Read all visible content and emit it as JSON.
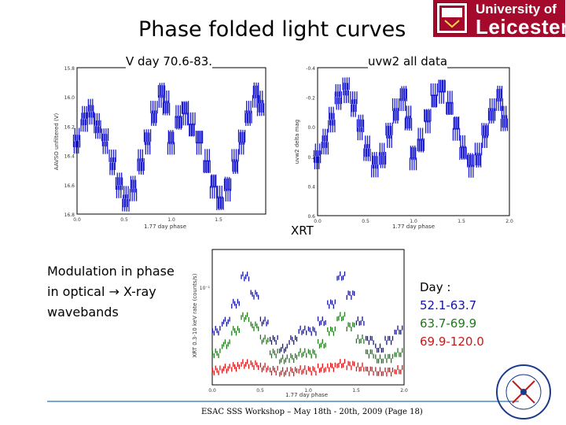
{
  "slide": {
    "title": "Phase folded light curves",
    "footer": "ESAC SSS Workshop – May 18th - 20th, 2009 (Page 18)",
    "text": [
      "Modulation in phase",
      "in optical → X-ray",
      "wavebands"
    ]
  },
  "logo": {
    "line1": "University of",
    "line2": "Leicester",
    "color": "#a50a2c"
  },
  "legend": {
    "header": "Day :",
    "items": [
      "52.1-63.7",
      "63.7-69.9",
      "69.9-120.0"
    ]
  },
  "chart_data": [
    {
      "type": "scatter",
      "title": "V day 70.6-83.",
      "xlabel": "1.77 day phase",
      "ylabel": "AAVSO unfiltered (V)",
      "xlim": [
        0.0,
        2.0
      ],
      "ylim": [
        16.8,
        15.8
      ],
      "x_ticks": [
        "0.0",
        "0.5",
        "1.0",
        "1.5"
      ],
      "y_ticks": [
        "15.8",
        "16.0",
        "16.2",
        "16.4",
        "16.6",
        "16.8"
      ],
      "series": [
        {
          "name": "V",
          "color": "#1a1ad4",
          "x": [
            0.0,
            0.08,
            0.15,
            0.22,
            0.3,
            0.38,
            0.45,
            0.52,
            0.6,
            0.68,
            0.75,
            0.82,
            0.9,
            0.95,
            1.0,
            1.08,
            1.15,
            1.22,
            1.3,
            1.38,
            1.45,
            1.52,
            1.6,
            1.68,
            1.75,
            1.82,
            1.9,
            1.95
          ],
          "y": [
            16.3,
            16.15,
            16.1,
            16.2,
            16.3,
            16.45,
            16.6,
            16.7,
            16.62,
            16.45,
            16.3,
            16.12,
            15.98,
            16.05,
            16.3,
            16.15,
            16.1,
            16.2,
            16.3,
            16.45,
            16.6,
            16.7,
            16.62,
            16.45,
            16.3,
            16.12,
            15.98,
            16.05
          ]
        }
      ]
    },
    {
      "type": "scatter",
      "title": "uvw2 all data",
      "xlabel": "1.77 day phase",
      "ylabel": "uvw2 delta mag",
      "xlim": [
        0.0,
        2.0
      ],
      "ylim": [
        0.6,
        -0.4
      ],
      "x_ticks": [
        "0.0",
        "0.5",
        "1.0",
        "1.5",
        "2.0"
      ],
      "y_ticks": [
        "-0.4",
        "-0.2",
        "0.0",
        "0.2",
        "0.4",
        "0.6"
      ],
      "series": [
        {
          "name": "uvw2",
          "color": "#1a1ad4",
          "x": [
            0.0,
            0.08,
            0.15,
            0.22,
            0.3,
            0.38,
            0.45,
            0.52,
            0.6,
            0.68,
            0.75,
            0.82,
            0.9,
            0.95,
            1.0,
            1.08,
            1.15,
            1.22,
            1.3,
            1.38,
            1.45,
            1.52,
            1.6,
            1.68,
            1.75,
            1.82,
            1.9,
            1.95
          ],
          "y": [
            0.2,
            0.1,
            -0.05,
            -0.2,
            -0.25,
            -0.15,
            0.0,
            0.15,
            0.25,
            0.2,
            0.05,
            -0.1,
            -0.2,
            -0.05,
            0.2,
            0.1,
            -0.05,
            -0.2,
            -0.25,
            -0.15,
            0.0,
            0.15,
            0.25,
            0.2,
            0.05,
            -0.1,
            -0.2,
            -0.05
          ]
        }
      ]
    },
    {
      "type": "scatter",
      "title": "XRT",
      "xlabel": "1.77 day phase",
      "ylabel": "XRT 0.3-10 keV rate (counts/s)",
      "xlim": [
        0.0,
        2.0
      ],
      "ylim": [
        0.05,
        0.2
      ],
      "x_ticks": [
        "0.0",
        "0.5",
        "1.0",
        "1.5",
        "2.0"
      ],
      "y_ticks": [
        "10⁻¹"
      ],
      "series": [
        {
          "name": "52.1-63.7",
          "color": "#1414a0",
          "x": [
            0.05,
            0.15,
            0.25,
            0.35,
            0.45,
            0.55,
            0.65,
            0.75,
            0.85,
            0.95,
            1.05,
            1.15,
            1.25,
            1.35,
            1.45,
            1.55,
            1.65,
            1.75,
            1.85,
            1.95
          ],
          "y": [
            0.11,
            0.12,
            0.14,
            0.17,
            0.15,
            0.12,
            0.1,
            0.09,
            0.1,
            0.11,
            0.11,
            0.12,
            0.14,
            0.17,
            0.15,
            0.12,
            0.1,
            0.09,
            0.1,
            0.11
          ]
        },
        {
          "name": "63.7-69.9",
          "color": "#1f7a1a",
          "x": [
            0.05,
            0.15,
            0.25,
            0.35,
            0.45,
            0.55,
            0.65,
            0.75,
            0.85,
            0.95,
            1.05,
            1.15,
            1.25,
            1.35,
            1.45,
            1.55,
            1.65,
            1.75,
            1.85,
            1.95
          ],
          "y": [
            0.085,
            0.095,
            0.11,
            0.125,
            0.115,
            0.1,
            0.085,
            0.078,
            0.08,
            0.085,
            0.085,
            0.095,
            0.11,
            0.125,
            0.115,
            0.1,
            0.085,
            0.078,
            0.08,
            0.085
          ]
        },
        {
          "name": "69.9-120.0",
          "color": "#e01010",
          "x": [
            0.05,
            0.15,
            0.25,
            0.35,
            0.45,
            0.55,
            0.65,
            0.75,
            0.85,
            0.95,
            1.05,
            1.15,
            1.25,
            1.35,
            1.45,
            1.55,
            1.65,
            1.75,
            1.85,
            1.95
          ],
          "y": [
            0.066,
            0.068,
            0.07,
            0.073,
            0.072,
            0.069,
            0.066,
            0.064,
            0.065,
            0.066,
            0.066,
            0.068,
            0.07,
            0.073,
            0.072,
            0.069,
            0.066,
            0.064,
            0.065,
            0.066
          ]
        }
      ]
    }
  ]
}
